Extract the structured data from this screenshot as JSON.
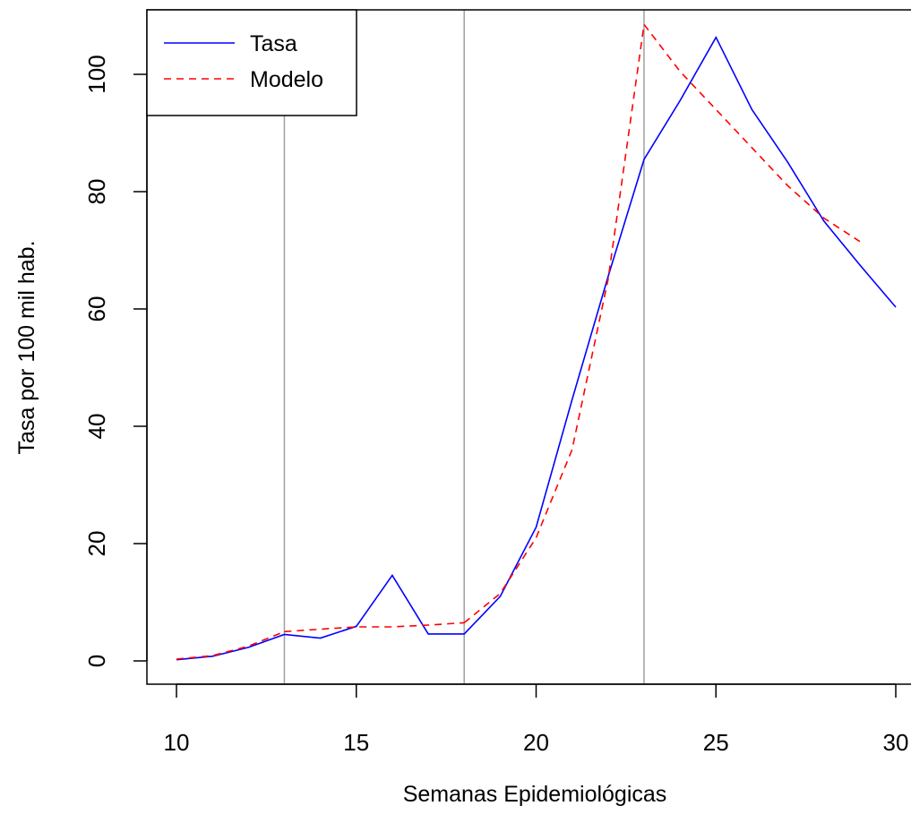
{
  "chart_data": {
    "type": "line",
    "title": "",
    "xlabel": "Semanas Epidemiológicas",
    "ylabel": "Tasa por 100 mil hab.",
    "xlim": [
      9.2,
      30.4
    ],
    "ylim": [
      -4,
      110
    ],
    "xticks": [
      10,
      15,
      20,
      25,
      30
    ],
    "yticks": [
      0,
      20,
      40,
      60,
      80,
      100
    ],
    "vlines": [
      13,
      18,
      23
    ],
    "vline_color": "#a0a0a0",
    "legend": {
      "position": "top-left"
    },
    "series": [
      {
        "name": "Tasa",
        "color": "#0000ff",
        "dash": "solid",
        "x": [
          10,
          11,
          12,
          13,
          14,
          15,
          16,
          17,
          18,
          19,
          20,
          21,
          22,
          23,
          24,
          25,
          26,
          27,
          28,
          29,
          30
        ],
        "y": [
          0.2,
          0.8,
          2.3,
          4.5,
          3.9,
          5.9,
          14.6,
          4.6,
          4.6,
          11.0,
          22.8,
          44.5,
          65.5,
          85.5,
          95.5,
          106.3,
          94.0,
          85.0,
          75.0,
          67.5,
          60.3
        ]
      },
      {
        "name": "Modelo",
        "color": "#ff0000",
        "dash": "dashed",
        "segments": [
          {
            "x": [
              10,
              11,
              12,
              13
            ],
            "y": [
              0.3,
              0.9,
              2.5,
              5.0
            ]
          },
          {
            "x": [
              13,
              14,
              15,
              16,
              17,
              18
            ],
            "y": [
              5.0,
              5.4,
              5.8,
              5.8,
              6.1,
              6.5
            ]
          },
          {
            "x": [
              18,
              19,
              20,
              21,
              22,
              23
            ],
            "y": [
              6.5,
              11.5,
              21.0,
              36.0,
              65.0,
              108.5
            ]
          },
          {
            "x": [
              23,
              24,
              25,
              26,
              27,
              28,
              29
            ],
            "y": [
              108.5,
              100.5,
              94.0,
              87.5,
              81.0,
              75.5,
              71.5
            ]
          }
        ]
      }
    ]
  }
}
